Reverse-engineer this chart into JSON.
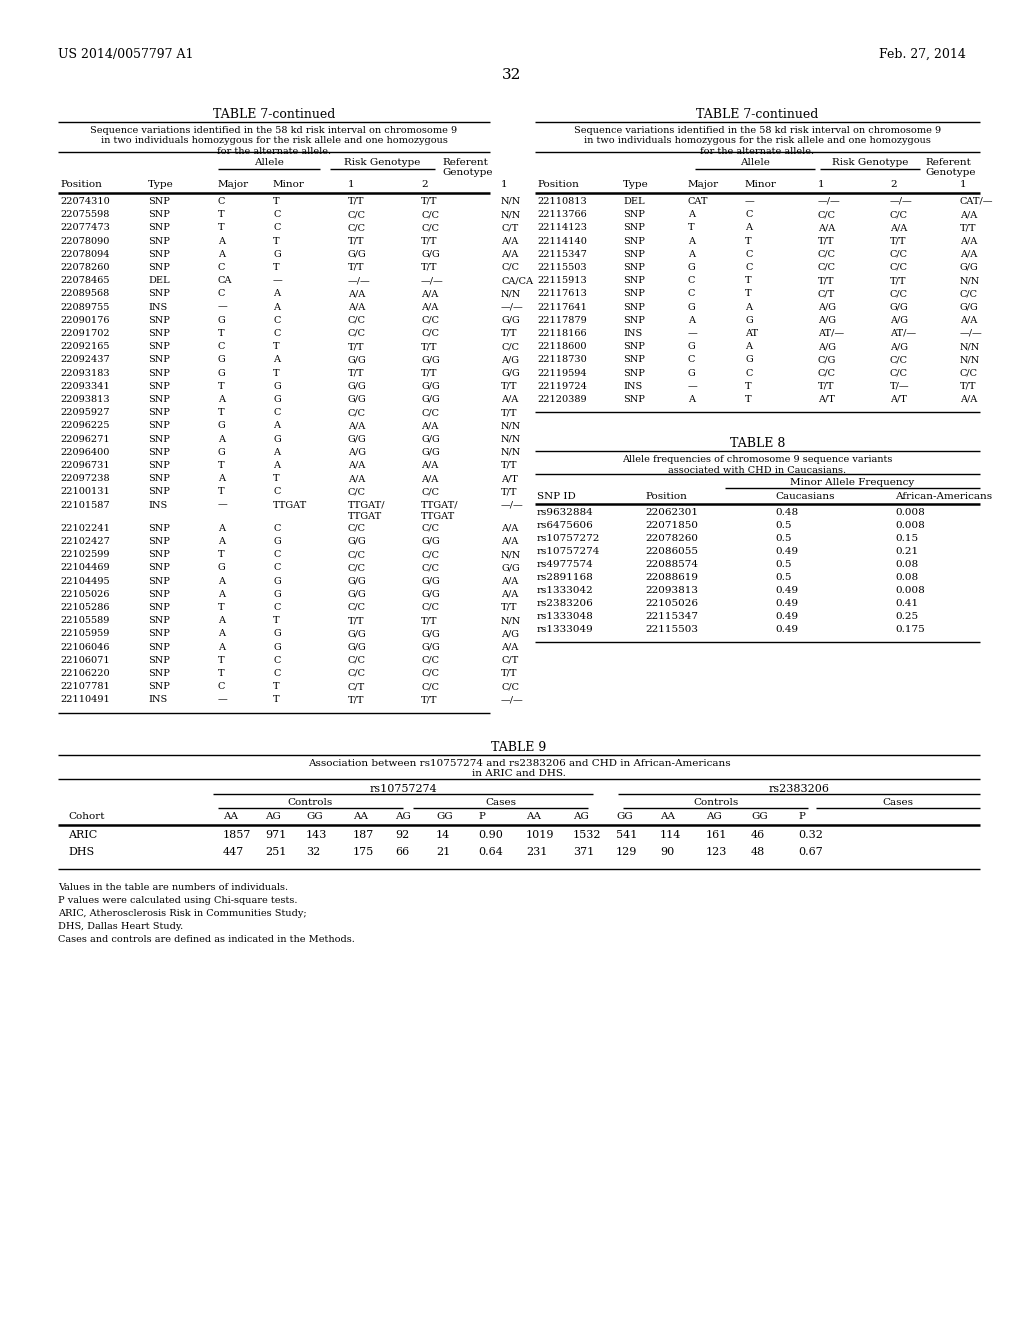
{
  "page_header_left": "US 2014/0057797 A1",
  "page_header_right": "Feb. 27, 2014",
  "page_number": "32",
  "bg_color": "#ffffff",
  "table7_left_title": "TABLE 7-continued",
  "table7_left_subtitle": "Sequence variations identified in the 58 kd risk interval on chromosome 9\nin two individuals homozygous for the risk allele and one homozygous\nfor the alternate allele.",
  "table7_col_group1": "Allele",
  "table7_col_group2": "Risk Genotype",
  "table7_col_group3": "Referent\nGenotype",
  "table7_col_headers": [
    "Position",
    "Type",
    "Major",
    "Minor",
    "1",
    "2",
    "1"
  ],
  "table7_left_rows": [
    [
      "22074310",
      "SNP",
      "C",
      "T",
      "T/T",
      "T/T",
      "N/N"
    ],
    [
      "22075598",
      "SNP",
      "T",
      "C",
      "C/C",
      "C/C",
      "N/N"
    ],
    [
      "22077473",
      "SNP",
      "T",
      "C",
      "C/C",
      "C/C",
      "C/T"
    ],
    [
      "22078090",
      "SNP",
      "A",
      "T",
      "T/T",
      "T/T",
      "A/A"
    ],
    [
      "22078094",
      "SNP",
      "A",
      "G",
      "G/G",
      "G/G",
      "A/A"
    ],
    [
      "22078260",
      "SNP",
      "C",
      "T",
      "T/T",
      "T/T",
      "C/C"
    ],
    [
      "22078465",
      "DEL",
      "CA",
      "—",
      "—/—",
      "—/—",
      "CA/CA"
    ],
    [
      "22089568",
      "SNP",
      "C",
      "A",
      "A/A",
      "A/A",
      "N/N"
    ],
    [
      "22089755",
      "INS",
      "—",
      "A",
      "A/A",
      "A/A",
      "—/—"
    ],
    [
      "22090176",
      "SNP",
      "G",
      "C",
      "C/C",
      "C/C",
      "G/G"
    ],
    [
      "22091702",
      "SNP",
      "T",
      "C",
      "C/C",
      "C/C",
      "T/T"
    ],
    [
      "22092165",
      "SNP",
      "C",
      "T",
      "T/T",
      "T/T",
      "C/C"
    ],
    [
      "22092437",
      "SNP",
      "G",
      "A",
      "G/G",
      "G/G",
      "A/G"
    ],
    [
      "22093183",
      "SNP",
      "G",
      "T",
      "T/T",
      "T/T",
      "G/G"
    ],
    [
      "22093341",
      "SNP",
      "T",
      "G",
      "G/G",
      "G/G",
      "T/T"
    ],
    [
      "22093813",
      "SNP",
      "A",
      "G",
      "G/G",
      "G/G",
      "A/A"
    ],
    [
      "22095927",
      "SNP",
      "T",
      "C",
      "C/C",
      "C/C",
      "T/T"
    ],
    [
      "22096225",
      "SNP",
      "G",
      "A",
      "A/A",
      "A/A",
      "N/N"
    ],
    [
      "22096271",
      "SNP",
      "A",
      "G",
      "G/G",
      "G/G",
      "N/N"
    ],
    [
      "22096400",
      "SNP",
      "G",
      "A",
      "A/G",
      "G/G",
      "N/N"
    ],
    [
      "22096731",
      "SNP",
      "T",
      "A",
      "A/A",
      "A/A",
      "T/T"
    ],
    [
      "22097238",
      "SNP",
      "A",
      "T",
      "A/A",
      "A/A",
      "A/T"
    ],
    [
      "22100131",
      "SNP",
      "T",
      "C",
      "C/C",
      "C/C",
      "T/T"
    ],
    [
      "22101587",
      "INS",
      "—",
      "TTGAT",
      "TTGAT/TTGAT",
      "TTGAT/TTGAT",
      "—/—"
    ],
    [
      "22102241",
      "SNP",
      "A",
      "C",
      "C/C",
      "C/C",
      "A/A"
    ],
    [
      "22102427",
      "SNP",
      "A",
      "G",
      "G/G",
      "G/G",
      "A/A"
    ],
    [
      "22102599",
      "SNP",
      "T",
      "C",
      "C/C",
      "C/C",
      "N/N"
    ],
    [
      "22104469",
      "SNP",
      "G",
      "C",
      "C/C",
      "C/C",
      "G/G"
    ],
    [
      "22104495",
      "SNP",
      "A",
      "G",
      "G/G",
      "G/G",
      "A/A"
    ],
    [
      "22105026",
      "SNP",
      "A",
      "G",
      "G/G",
      "G/G",
      "A/A"
    ],
    [
      "22105286",
      "SNP",
      "T",
      "C",
      "C/C",
      "C/C",
      "T/T"
    ],
    [
      "22105589",
      "SNP",
      "A",
      "T",
      "T/T",
      "T/T",
      "N/N"
    ],
    [
      "22105959",
      "SNP",
      "A",
      "G",
      "G/G",
      "G/G",
      "A/G"
    ],
    [
      "22106046",
      "SNP",
      "A",
      "G",
      "G/G",
      "G/G",
      "A/A"
    ],
    [
      "22106071",
      "SNP",
      "T",
      "C",
      "C/C",
      "C/C",
      "C/T"
    ],
    [
      "22106220",
      "SNP",
      "T",
      "C",
      "C/C",
      "C/C",
      "T/T"
    ],
    [
      "22107781",
      "SNP",
      "C",
      "T",
      "C/T",
      "C/C",
      "C/C"
    ],
    [
      "22110491",
      "INS",
      "—",
      "T",
      "T/T",
      "T/T",
      "—/—"
    ]
  ],
  "table7_right_title": "TABLE 7-continued",
  "table7_right_subtitle": "Sequence variations identified in the 58 kd risk interval on chromosome 9\nin two individuals homozygous for the risk allele and one homozygous\nfor the alternate allele.",
  "table7_right_rows": [
    [
      "22110813",
      "DEL",
      "CAT",
      "—",
      "—/—",
      "—/—",
      "CAT/—"
    ],
    [
      "22113766",
      "SNP",
      "A",
      "C",
      "C/C",
      "C/C",
      "A/A"
    ],
    [
      "22114123",
      "SNP",
      "T",
      "A",
      "A/A",
      "A/A",
      "T/T"
    ],
    [
      "22114140",
      "SNP",
      "A",
      "T",
      "T/T",
      "T/T",
      "A/A"
    ],
    [
      "22115347",
      "SNP",
      "A",
      "C",
      "C/C",
      "C/C",
      "A/A"
    ],
    [
      "22115503",
      "SNP",
      "G",
      "C",
      "C/C",
      "C/C",
      "G/G"
    ],
    [
      "22115913",
      "SNP",
      "C",
      "T",
      "T/T",
      "T/T",
      "N/N"
    ],
    [
      "22117613",
      "SNP",
      "C",
      "T",
      "C/T",
      "C/C",
      "C/C"
    ],
    [
      "22117641",
      "SNP",
      "G",
      "A",
      "A/G",
      "G/G",
      "G/G"
    ],
    [
      "22117879",
      "SNP",
      "A",
      "G",
      "A/G",
      "A/G",
      "A/A"
    ],
    [
      "22118166",
      "INS",
      "—",
      "AT",
      "AT/—",
      "AT/—",
      "—/—"
    ],
    [
      "22118600",
      "SNP",
      "G",
      "A",
      "A/G",
      "A/G",
      "N/N"
    ],
    [
      "22118730",
      "SNP",
      "C",
      "G",
      "C/G",
      "C/C",
      "N/N"
    ],
    [
      "22119594",
      "SNP",
      "G",
      "C",
      "C/C",
      "C/C",
      "C/C"
    ],
    [
      "22119724",
      "INS",
      "—",
      "T",
      "T/T",
      "T/—",
      "T/T"
    ],
    [
      "22120389",
      "SNP",
      "A",
      "T",
      "A/T",
      "A/T",
      "A/A"
    ]
  ],
  "table8_title": "TABLE 8",
  "table8_subtitle": "Allele frequencies of chromosome 9 sequence variants\nassociated with CHD in Caucasians.",
  "table8_col_group": "Minor Allele Frequency",
  "table8_col_headers": [
    "SNP ID",
    "Position",
    "Caucasians",
    "African-Americans"
  ],
  "table8_rows": [
    [
      "rs9632884",
      "22062301",
      "0.48",
      "0.008"
    ],
    [
      "rs6475606",
      "22071850",
      "0.5",
      "0.008"
    ],
    [
      "rs10757272",
      "22078260",
      "0.5",
      "0.15"
    ],
    [
      "rs10757274",
      "22086055",
      "0.49",
      "0.21"
    ],
    [
      "rs4977574",
      "22088574",
      "0.5",
      "0.08"
    ],
    [
      "rs2891168",
      "22088619",
      "0.5",
      "0.08"
    ],
    [
      "rs1333042",
      "22093813",
      "0.49",
      "0.008"
    ],
    [
      "rs2383206",
      "22105026",
      "0.49",
      "0.41"
    ],
    [
      "rs1333048",
      "22115347",
      "0.49",
      "0.25"
    ],
    [
      "rs1333049",
      "22115503",
      "0.49",
      "0.175"
    ]
  ],
  "table9_title": "TABLE 9",
  "table9_subtitle": "Association between rs10757274 and rs2383206 and CHD in African-Americans\nin ARIC and DHS.",
  "table9_snp1": "rs10757274",
  "table9_snp2": "rs2383206",
  "table9_controls": "Controls",
  "table9_cases": "Cases",
  "table9_col_headers": [
    "Cohort",
    "AA",
    "AG",
    "GG",
    "AA",
    "AG",
    "GG",
    "P",
    "AA",
    "AG",
    "GG",
    "AA",
    "AG",
    "GG",
    "P"
  ],
  "table9_rows": [
    [
      "ARIC",
      "1857",
      "971",
      "143",
      "187",
      "92",
      "14",
      "0.90",
      "1019",
      "1532",
      "541",
      "114",
      "161",
      "46",
      "0.32"
    ],
    [
      "DHS",
      "447",
      "251",
      "32",
      "175",
      "66",
      "21",
      "0.64",
      "231",
      "371",
      "129",
      "90",
      "123",
      "48",
      "0.67"
    ]
  ],
  "table9_footnotes": [
    "Values in the table are numbers of individuals.",
    "P values were calculated using Chi-square tests.",
    "ARIC, Atherosclerosis Risk in Communities Study;",
    "DHS, Dallas Heart Study.",
    "Cases and controls are defined as indicated in the Methods."
  ]
}
